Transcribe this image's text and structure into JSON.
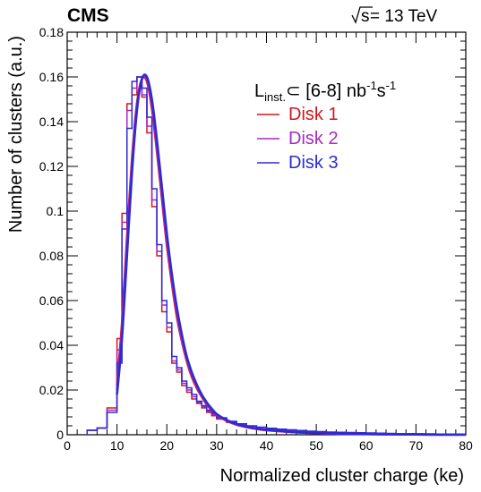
{
  "header": {
    "experiment": "CMS",
    "sqrt_label": "s",
    "energy_text": " = 13 TeV"
  },
  "legend": {
    "lumi_L": "L",
    "lumi_sub": "inst.",
    "lumi_text": "⊂ [6-8] nb",
    "lumi_exp1": "-1",
    "lumi_s": "s",
    "lumi_exp2": "-1",
    "placement": "top-right"
  },
  "colors": {
    "disk1": "#d4161f",
    "disk2": "#a42bbf",
    "disk3": "#2b2bd6"
  },
  "chart_data": {
    "type": "line",
    "title": "",
    "xlabel": "Normalized cluster charge (ke)",
    "ylabel": "Number of clusters (a.u.)",
    "xlim": [
      0,
      80
    ],
    "ylim": [
      0,
      0.18
    ],
    "xticks": [
      "0",
      "10",
      "20",
      "30",
      "40",
      "50",
      "60",
      "70",
      "80"
    ],
    "yticks": [
      "0",
      "0.02",
      "0.04",
      "0.06",
      "0.08",
      "0.1",
      "0.12",
      "0.14",
      "0.16",
      "0.18"
    ],
    "grid": false,
    "histogram_bin_edges": [
      4,
      6,
      8,
      10,
      11,
      12,
      13,
      14,
      15,
      16,
      17,
      18,
      19,
      20,
      21,
      22,
      23,
      24,
      25,
      26,
      27,
      28,
      29,
      30,
      32,
      34,
      36,
      38,
      40,
      42,
      44,
      46,
      48,
      50,
      52,
      54,
      56,
      58,
      60,
      62,
      64,
      66,
      68,
      70,
      72,
      74,
      76,
      78,
      80
    ],
    "series": [
      {
        "name": "Disk 1",
        "histogram": [
          0.002,
          0.003,
          0.012,
          0.043,
          0.099,
          0.148,
          0.152,
          0.16,
          0.151,
          0.135,
          0.102,
          0.08,
          0.055,
          0.046,
          0.032,
          0.028,
          0.022,
          0.019,
          0.016,
          0.014,
          0.012,
          0.01,
          0.0085,
          0.007,
          0.0055,
          0.0045,
          0.0038,
          0.0032,
          0.0027,
          0.0023,
          0.002,
          0.0017,
          0.0015,
          0.0013,
          0.0011,
          0.001,
          0.0009,
          0.0008,
          0.0007,
          0.0006,
          0.0005,
          0.0005,
          0.0004,
          0.0004,
          0.0003,
          0.0003,
          0.0003,
          0.0002
        ],
        "fit_x": [
          10,
          11,
          12,
          13,
          14,
          15,
          16,
          17,
          18,
          19,
          20,
          21,
          22,
          23,
          24,
          25,
          26,
          27,
          28,
          29,
          30,
          32,
          34,
          36,
          38,
          40,
          45,
          50,
          55,
          60,
          70,
          80
        ],
        "fit_y": [
          0.022,
          0.05,
          0.088,
          0.123,
          0.148,
          0.159,
          0.158,
          0.146,
          0.127,
          0.106,
          0.085,
          0.068,
          0.053,
          0.042,
          0.033,
          0.026,
          0.021,
          0.017,
          0.0135,
          0.011,
          0.0088,
          0.0062,
          0.0045,
          0.0034,
          0.0026,
          0.002,
          0.0012,
          0.0007,
          0.0004,
          0.0003,
          0.0001,
          5e-05
        ]
      },
      {
        "name": "Disk 2",
        "histogram": [
          0.002,
          0.003,
          0.011,
          0.038,
          0.095,
          0.145,
          0.155,
          0.16,
          0.152,
          0.138,
          0.105,
          0.082,
          0.058,
          0.048,
          0.033,
          0.029,
          0.023,
          0.02,
          0.017,
          0.0145,
          0.0125,
          0.0105,
          0.009,
          0.0073,
          0.0057,
          0.0047,
          0.0039,
          0.0033,
          0.0028,
          0.0024,
          0.0021,
          0.0018,
          0.0015,
          0.0013,
          0.0011,
          0.001,
          0.0009,
          0.0008,
          0.0007,
          0.0006,
          0.0005,
          0.0005,
          0.0004,
          0.0004,
          0.0003,
          0.0003,
          0.0003,
          0.0002
        ],
        "fit_x": [
          10,
          11,
          12,
          13,
          14,
          15,
          16,
          17,
          18,
          19,
          20,
          21,
          22,
          23,
          24,
          25,
          26,
          27,
          28,
          29,
          30,
          32,
          34,
          36,
          38,
          40,
          45,
          50,
          55,
          60,
          70,
          80
        ],
        "fit_y": [
          0.02,
          0.047,
          0.085,
          0.121,
          0.147,
          0.159,
          0.159,
          0.148,
          0.129,
          0.108,
          0.087,
          0.07,
          0.055,
          0.043,
          0.034,
          0.027,
          0.022,
          0.0175,
          0.014,
          0.0113,
          0.009,
          0.0064,
          0.0046,
          0.0035,
          0.0027,
          0.0021,
          0.0012,
          0.0007,
          0.0004,
          0.0003,
          0.0001,
          5e-05
        ]
      },
      {
        "name": "Disk 3",
        "histogram": [
          0.002,
          0.003,
          0.01,
          0.032,
          0.092,
          0.137,
          0.158,
          0.16,
          0.155,
          0.142,
          0.11,
          0.085,
          0.06,
          0.05,
          0.035,
          0.03,
          0.024,
          0.021,
          0.018,
          0.015,
          0.013,
          0.011,
          0.0095,
          0.0076,
          0.006,
          0.0049,
          0.004,
          0.0034,
          0.0029,
          0.0025,
          0.0022,
          0.0019,
          0.0016,
          0.0014,
          0.0012,
          0.0011,
          0.001,
          0.0009,
          0.0008,
          0.0007,
          0.0006,
          0.0005,
          0.0005,
          0.0004,
          0.0004,
          0.0003,
          0.0003,
          0.0003
        ],
        "fit_x": [
          10,
          11,
          12,
          13,
          14,
          15,
          16,
          17,
          18,
          19,
          20,
          21,
          22,
          23,
          24,
          25,
          26,
          27,
          28,
          29,
          30,
          32,
          34,
          36,
          38,
          40,
          45,
          50,
          55,
          60,
          70,
          80
        ],
        "fit_y": [
          0.018,
          0.043,
          0.08,
          0.117,
          0.145,
          0.159,
          0.16,
          0.15,
          0.132,
          0.111,
          0.09,
          0.072,
          0.057,
          0.045,
          0.035,
          0.028,
          0.0225,
          0.018,
          0.0145,
          0.0117,
          0.0093,
          0.0066,
          0.0048,
          0.0036,
          0.0028,
          0.0022,
          0.0013,
          0.0008,
          0.0005,
          0.0003,
          0.0001,
          5e-05
        ]
      }
    ]
  }
}
